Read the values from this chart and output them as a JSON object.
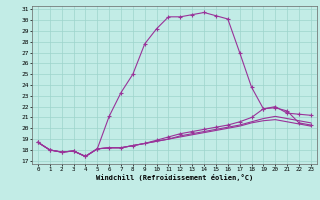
{
  "title": "",
  "xlabel": "Windchill (Refroidissement éolien,°C)",
  "ylabel": "",
  "bg_color": "#c2ece6",
  "grid_color": "#9dd4cc",
  "line_color": "#993399",
  "xlim": [
    -0.5,
    23.5
  ],
  "ylim": [
    16.7,
    31.3
  ],
  "yticks": [
    17,
    18,
    19,
    20,
    21,
    22,
    23,
    24,
    25,
    26,
    27,
    28,
    29,
    30,
    31
  ],
  "xticks": [
    0,
    1,
    2,
    3,
    4,
    5,
    6,
    7,
    8,
    9,
    10,
    11,
    12,
    13,
    14,
    15,
    16,
    17,
    18,
    19,
    20,
    21,
    22,
    23
  ],
  "curve1_x": [
    0,
    1,
    2,
    3,
    4,
    5,
    6,
    7,
    8,
    9,
    10,
    11,
    12,
    13,
    14,
    15,
    16,
    17,
    18,
    19,
    20,
    21,
    22,
    23
  ],
  "curve1_y": [
    18.7,
    18.0,
    17.8,
    17.9,
    17.4,
    18.1,
    21.1,
    23.3,
    25.0,
    27.8,
    29.2,
    30.3,
    30.3,
    30.5,
    30.7,
    30.4,
    30.1,
    27.0,
    23.8,
    21.8,
    21.9,
    21.6,
    20.5,
    20.3
  ],
  "curve1_markers": true,
  "curve2_x": [
    0,
    1,
    2,
    3,
    4,
    5,
    6,
    7,
    8,
    9,
    10,
    11,
    12,
    13,
    14,
    15,
    16,
    17,
    18,
    19,
    20,
    21,
    22,
    23
  ],
  "curve2_y": [
    18.7,
    18.0,
    17.8,
    17.9,
    17.4,
    18.1,
    18.2,
    18.2,
    18.4,
    18.6,
    18.9,
    19.2,
    19.5,
    19.7,
    19.9,
    20.1,
    20.3,
    20.6,
    21.0,
    21.8,
    22.0,
    21.4,
    21.3,
    21.2
  ],
  "curve2_markers": true,
  "curve3_x": [
    0,
    1,
    2,
    3,
    4,
    5,
    6,
    7,
    8,
    9,
    10,
    11,
    12,
    13,
    14,
    15,
    16,
    17,
    18,
    19,
    20,
    21,
    22,
    23
  ],
  "curve3_y": [
    18.7,
    18.0,
    17.8,
    17.9,
    17.4,
    18.1,
    18.2,
    18.2,
    18.4,
    18.6,
    18.8,
    19.0,
    19.3,
    19.5,
    19.7,
    19.9,
    20.1,
    20.3,
    20.6,
    20.9,
    21.1,
    20.9,
    20.7,
    20.5
  ],
  "curve3_markers": false,
  "curve4_x": [
    0,
    1,
    2,
    3,
    4,
    5,
    6,
    7,
    8,
    9,
    10,
    11,
    12,
    13,
    14,
    15,
    16,
    17,
    18,
    19,
    20,
    21,
    22,
    23
  ],
  "curve4_y": [
    18.7,
    18.0,
    17.8,
    17.9,
    17.4,
    18.1,
    18.2,
    18.2,
    18.4,
    18.6,
    18.8,
    19.0,
    19.2,
    19.4,
    19.6,
    19.8,
    20.0,
    20.2,
    20.5,
    20.7,
    20.8,
    20.6,
    20.4,
    20.2
  ],
  "curve4_markers": false
}
